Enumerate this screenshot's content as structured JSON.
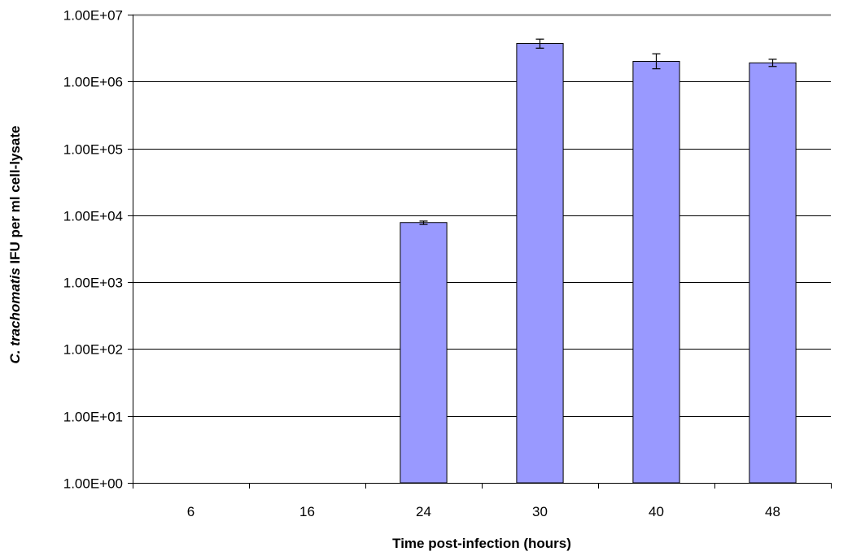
{
  "chart_data": {
    "type": "bar",
    "xlabel": "Time post-infection  (hours)",
    "ylabel_italic": "C. trachomatis",
    "ylabel_rest": " IFU per ml cell-lysate",
    "categories": [
      "6",
      "16",
      "24",
      "30",
      "40",
      "48"
    ],
    "values": [
      null,
      null,
      7800,
      3700000,
      2000000,
      1900000
    ],
    "error_low": [
      null,
      null,
      7300,
      3150000,
      1550000,
      1680000
    ],
    "error_high": [
      null,
      null,
      8200,
      4300000,
      2600000,
      2150000
    ],
    "y_scale": "log",
    "ylim": [
      1,
      10000000
    ],
    "y_tick_values": [
      1,
      10,
      100,
      1000,
      10000,
      100000,
      1000000,
      10000000
    ],
    "y_tick_labels": [
      "1.00E+00",
      "1.00E+01",
      "1.00E+02",
      "1.00E+03",
      "1.00E+04",
      "1.00E+05",
      "1.00E+06",
      "1.00E+07"
    ],
    "grid": true,
    "bar_color": "#9999ff"
  }
}
